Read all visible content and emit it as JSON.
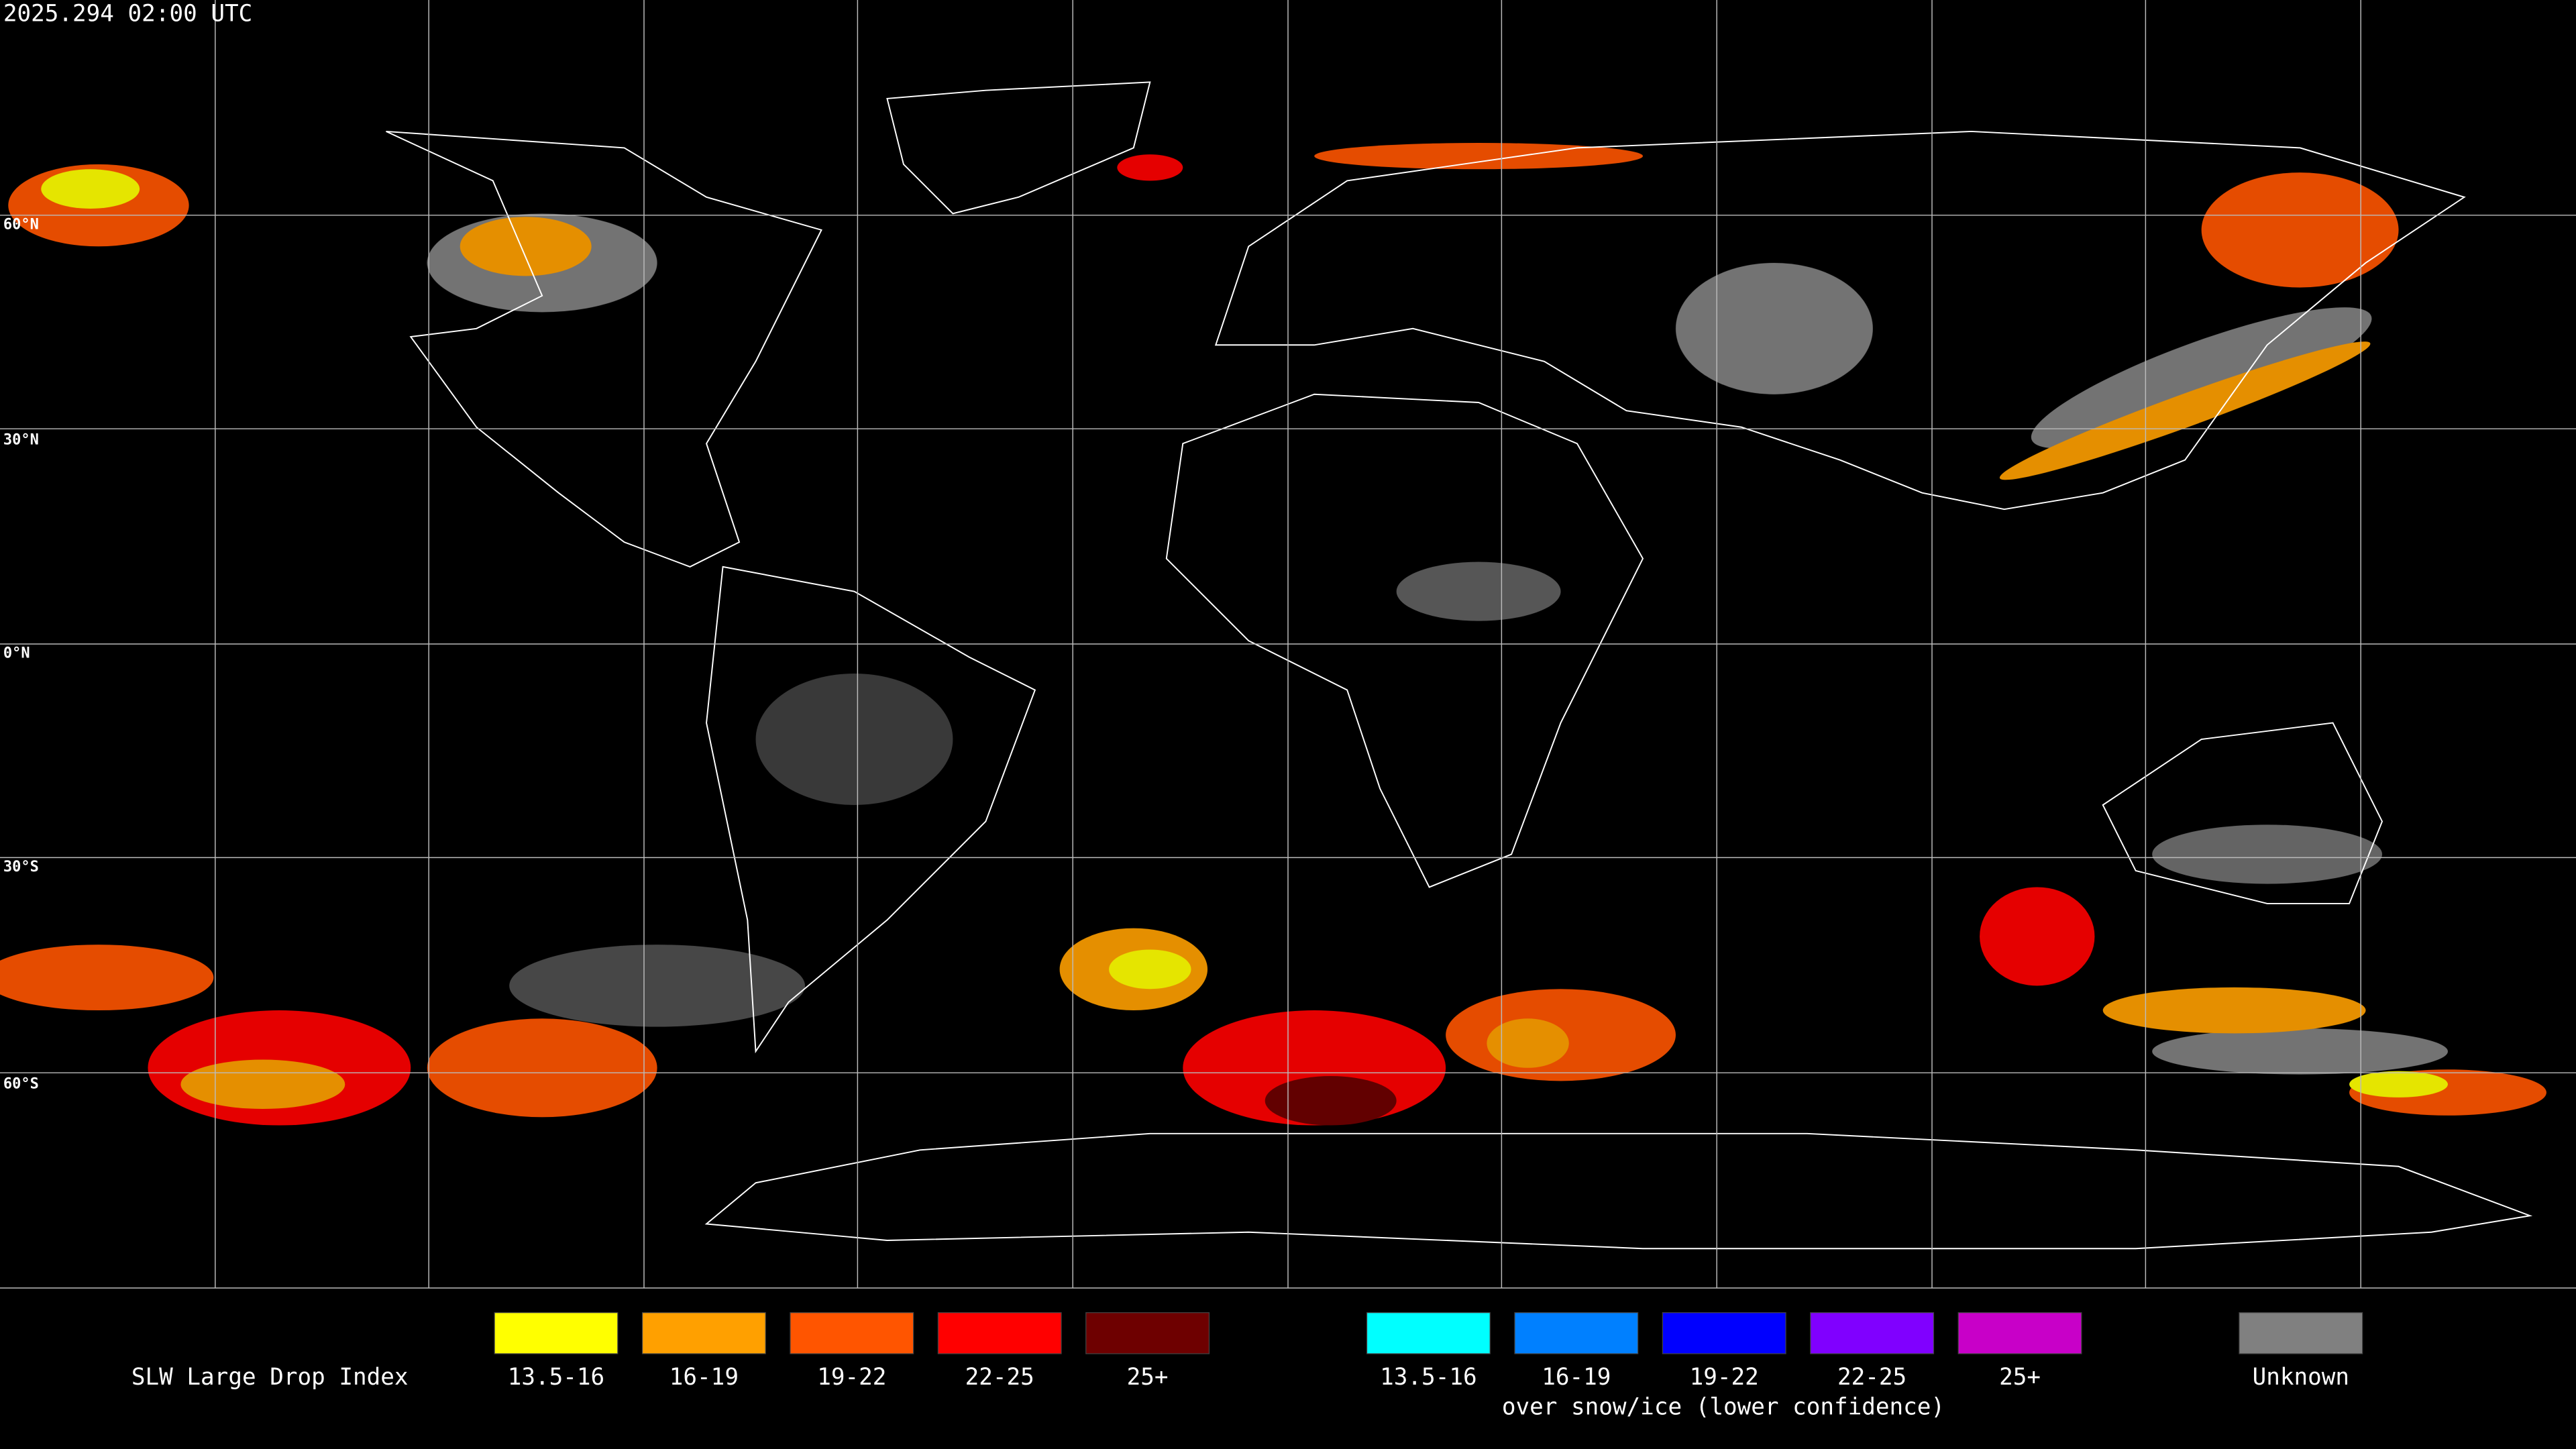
{
  "header": {
    "timestamp": "2025.294 02:00 UTC"
  },
  "map": {
    "latitude_labels": [
      "60°N",
      "30°N",
      "0°N",
      "30°S",
      "60°S"
    ]
  },
  "legend": {
    "title": "SLW Large Drop Index",
    "groups": [
      {
        "items": [
          {
            "label": "13.5-16",
            "color": "#ffff00"
          },
          {
            "label": "16-19",
            "color": "#ffa000"
          },
          {
            "label": "19-22",
            "color": "#ff5500"
          },
          {
            "label": "22-25",
            "color": "#ff0000"
          },
          {
            "label": "25+",
            "color": "#6e0000"
          }
        ]
      },
      {
        "items": [
          {
            "label": "13.5-16",
            "color": "#00ffff"
          },
          {
            "label": "16-19",
            "color": "#0080ff"
          },
          {
            "label": "19-22",
            "color": "#0000ff"
          },
          {
            "label": "22-25",
            "color": "#8000ff"
          },
          {
            "label": "25+",
            "color": "#c800c8"
          }
        ],
        "note": "over snow/ice (lower confidence)"
      }
    ],
    "unknown": {
      "label": "Unknown",
      "color": "#808080"
    }
  }
}
